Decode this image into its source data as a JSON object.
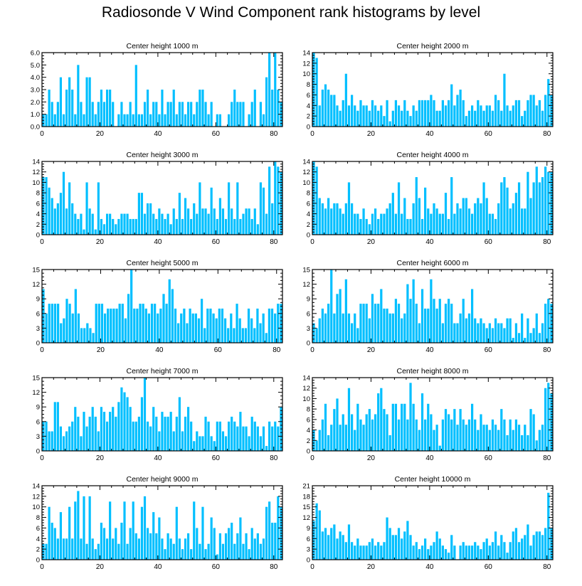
{
  "title": "Radiosonde V Wind Component rank histograms by level",
  "bar_color": "#00bfff",
  "chart_data": [
    {
      "type": "bar",
      "title": "Center height 1000 m",
      "x_ticks": [
        0,
        20,
        40,
        60,
        80
      ],
      "xlim": [
        0,
        83
      ],
      "ylim": [
        0,
        6
      ],
      "y_ticks": [
        "0.0",
        "1.0",
        "2.0",
        "3.0",
        "4.0",
        "5.0",
        "6.0"
      ],
      "y_tick_values": [
        0,
        1,
        2,
        3,
        4,
        5,
        6
      ],
      "values": [
        1,
        1,
        3,
        2,
        1,
        2,
        4,
        1,
        3,
        4,
        3,
        1,
        5,
        2,
        1,
        4,
        4,
        2,
        1,
        2,
        3,
        2,
        3,
        3,
        2,
        0,
        1,
        2,
        1,
        1,
        2,
        1,
        5,
        1,
        1,
        2,
        3,
        1,
        2,
        2,
        1,
        3,
        1,
        2,
        2,
        3,
        1,
        2,
        2,
        1,
        2,
        2,
        1,
        2,
        3,
        3,
        2,
        1,
        2,
        0,
        1,
        1,
        0,
        0,
        1,
        2,
        3,
        2,
        2,
        2,
        0,
        1,
        2,
        3,
        0,
        2,
        1,
        4,
        6,
        3,
        6,
        3,
        2
      ]
    },
    {
      "type": "bar",
      "title": "Center height 2000 m",
      "x_ticks": [
        0,
        20,
        40,
        60,
        80
      ],
      "xlim": [
        0,
        82
      ],
      "ylim": [
        0,
        14
      ],
      "y_ticks": [
        "0",
        "2",
        "4",
        "6",
        "8",
        "10",
        "12",
        "14"
      ],
      "y_tick_values": [
        0,
        2,
        4,
        6,
        8,
        10,
        12,
        14
      ],
      "values": [
        14,
        13,
        4,
        7,
        8,
        7,
        6,
        6,
        4,
        3,
        5,
        10,
        4,
        6,
        4,
        3,
        5,
        4,
        4,
        3,
        5,
        4,
        3,
        4,
        2,
        5,
        1,
        3,
        5,
        4,
        3,
        5,
        3,
        2,
        4,
        3,
        5,
        5,
        5,
        5,
        6,
        5,
        3,
        3,
        5,
        4,
        5,
        8,
        4,
        6,
        7,
        5,
        2,
        3,
        4,
        3,
        5,
        4,
        3,
        4,
        4,
        3,
        6,
        5,
        3,
        10,
        4,
        3,
        4,
        5,
        5,
        2,
        3,
        5,
        6,
        6,
        4,
        5,
        3,
        6,
        9,
        6
      ]
    },
    {
      "type": "bar",
      "title": "Center height 3000 m",
      "x_ticks": [
        0,
        20,
        40,
        60,
        80
      ],
      "xlim": [
        0,
        83
      ],
      "ylim": [
        0,
        14
      ],
      "y_ticks": [
        "0",
        "2",
        "4",
        "6",
        "8",
        "10",
        "12",
        "14"
      ],
      "y_tick_values": [
        0,
        2,
        4,
        6,
        8,
        10,
        12,
        14
      ],
      "values": [
        11,
        11,
        9,
        7,
        5,
        6,
        8,
        12,
        5,
        10,
        6,
        4,
        3,
        4,
        1,
        10,
        5,
        4,
        1,
        10,
        3,
        2,
        4,
        4,
        3,
        2,
        3,
        4,
        4,
        4,
        3,
        3,
        3,
        8,
        8,
        4,
        6,
        6,
        4,
        3,
        5,
        4,
        3,
        4,
        2,
        5,
        3,
        8,
        3,
        7,
        5,
        3,
        6,
        4,
        10,
        5,
        5,
        4,
        9,
        5,
        3,
        7,
        5,
        3,
        10,
        5,
        3,
        10,
        3,
        4,
        5,
        5,
        3,
        5,
        2,
        10,
        9,
        4,
        13,
        6,
        14,
        13,
        12
      ]
    },
    {
      "type": "bar",
      "title": "Center height 4000 m",
      "x_ticks": [
        0,
        20,
        40,
        60,
        80
      ],
      "xlim": [
        0,
        82
      ],
      "ylim": [
        0,
        14
      ],
      "y_ticks": [
        "0",
        "2",
        "4",
        "6",
        "8",
        "10",
        "12",
        "14"
      ],
      "y_tick_values": [
        0,
        2,
        4,
        6,
        8,
        10,
        12,
        14
      ],
      "values": [
        14,
        13,
        7,
        6,
        5,
        7,
        5,
        6,
        6,
        5,
        4,
        6,
        10,
        6,
        4,
        4,
        3,
        5,
        3,
        2,
        4,
        5,
        3,
        4,
        4,
        5,
        6,
        8,
        4,
        10,
        4,
        7,
        3,
        3,
        6,
        11,
        7,
        3,
        9,
        5,
        4,
        6,
        5,
        4,
        4,
        8,
        3,
        11,
        4,
        6,
        5,
        7,
        7,
        5,
        4,
        6,
        7,
        6,
        10,
        7,
        4,
        4,
        3,
        6,
        10,
        11,
        9,
        5,
        6,
        8,
        10,
        5,
        5,
        12,
        7,
        10,
        13,
        10,
        11,
        13,
        12,
        12
      ]
    },
    {
      "type": "bar",
      "title": "Center height 5000 m",
      "x_ticks": [
        0,
        20,
        40,
        60,
        80
      ],
      "xlim": [
        0,
        82
      ],
      "ylim": [
        0,
        15
      ],
      "y_ticks": [
        "0",
        "3",
        "6",
        "9",
        "12",
        "15"
      ],
      "y_tick_values": [
        0,
        3,
        6,
        9,
        12,
        15
      ],
      "values": [
        11,
        6,
        8,
        8,
        8,
        8,
        4,
        5,
        9,
        8,
        6,
        11,
        6,
        3,
        3,
        4,
        3,
        2,
        8,
        8,
        8,
        6,
        7,
        7,
        7,
        7,
        8,
        8,
        5,
        10,
        15,
        7,
        7,
        8,
        8,
        7,
        6,
        8,
        8,
        6,
        7,
        10,
        8,
        13,
        11,
        7,
        4,
        6,
        7,
        4,
        7,
        6,
        6,
        5,
        9,
        3,
        7,
        7,
        6,
        5,
        7,
        7,
        5,
        3,
        6,
        3,
        8,
        5,
        3,
        3,
        7,
        5,
        3,
        7,
        4,
        6,
        2,
        7,
        7,
        6,
        8,
        8
      ]
    },
    {
      "type": "bar",
      "title": "Center height 6000 m",
      "x_ticks": [
        0,
        20,
        40,
        60,
        80
      ],
      "xlim": [
        0,
        82
      ],
      "ylim": [
        0,
        15
      ],
      "y_ticks": [
        "0",
        "3",
        "6",
        "9",
        "12",
        "15"
      ],
      "y_tick_values": [
        0,
        3,
        6,
        9,
        12,
        15
      ],
      "values": [
        4,
        3,
        5,
        7,
        6,
        8,
        15,
        6,
        10,
        11,
        6,
        13,
        6,
        4,
        6,
        3,
        8,
        8,
        8,
        5,
        10,
        8,
        8,
        11,
        7,
        7,
        6,
        6,
        9,
        8,
        5,
        6,
        12,
        9,
        13,
        8,
        4,
        11,
        7,
        7,
        13,
        9,
        7,
        9,
        4,
        8,
        9,
        8,
        4,
        4,
        6,
        9,
        5,
        6,
        11,
        5,
        4,
        5,
        4,
        3,
        4,
        3,
        5,
        4,
        4,
        3,
        5,
        5,
        1,
        4,
        2,
        6,
        1,
        5,
        2,
        3,
        6,
        2,
        4,
        8,
        9,
        8
      ]
    },
    {
      "type": "bar",
      "title": "Center height 7000 m",
      "x_ticks": [
        0,
        20,
        40,
        60,
        80
      ],
      "xlim": [
        0,
        83
      ],
      "ylim": [
        0,
        15
      ],
      "y_ticks": [
        "0",
        "3",
        "6",
        "9",
        "12",
        "15"
      ],
      "y_tick_values": [
        0,
        3,
        6,
        9,
        12,
        15
      ],
      "values": [
        6,
        6,
        4,
        4,
        10,
        10,
        5,
        3,
        4,
        5,
        6,
        9,
        7,
        3,
        8,
        5,
        7,
        9,
        7,
        4,
        9,
        8,
        6,
        8,
        9,
        7,
        10,
        13,
        12,
        11,
        9,
        6,
        6,
        7,
        11,
        15,
        6,
        5,
        9,
        7,
        4,
        8,
        7,
        7,
        8,
        4,
        7,
        11,
        4,
        7,
        9,
        6,
        2,
        4,
        3,
        3,
        7,
        6,
        3,
        2,
        6,
        6,
        4,
        3,
        6,
        7,
        6,
        5,
        8,
        5,
        5,
        3,
        7,
        6,
        5,
        3,
        5,
        1,
        6,
        5,
        6,
        5,
        9
      ]
    },
    {
      "type": "bar",
      "title": "Center height 8000 m",
      "x_ticks": [
        0,
        20,
        40,
        60,
        80
      ],
      "xlim": [
        0,
        82
      ],
      "ylim": [
        0,
        14
      ],
      "y_ticks": [
        "0",
        "2",
        "4",
        "6",
        "8",
        "10",
        "12",
        "14"
      ],
      "y_tick_values": [
        0,
        2,
        4,
        6,
        8,
        10,
        12,
        14
      ],
      "values": [
        4,
        2,
        4,
        6,
        9,
        3,
        5,
        8,
        10,
        5,
        7,
        5,
        12,
        7,
        4,
        9,
        6,
        5,
        7,
        8,
        6,
        7,
        11,
        12,
        8,
        7,
        3,
        9,
        9,
        6,
        9,
        9,
        6,
        13,
        9,
        6,
        4,
        11,
        6,
        9,
        7,
        4,
        5,
        1,
        6,
        8,
        7,
        6,
        8,
        5,
        8,
        6,
        5,
        6,
        9,
        6,
        4,
        7,
        5,
        5,
        4,
        6,
        5,
        4,
        8,
        6,
        3,
        6,
        4,
        6,
        5,
        3,
        5,
        3,
        8,
        7,
        2,
        4,
        5,
        12,
        13,
        11
      ]
    },
    {
      "type": "bar",
      "title": "Center height 9000 m",
      "x_ticks": [
        0,
        20,
        40,
        60,
        80
      ],
      "xlim": [
        0,
        83
      ],
      "ylim": [
        0,
        14
      ],
      "y_ticks": [
        "0",
        "2",
        "4",
        "6",
        "8",
        "10",
        "12",
        "14"
      ],
      "y_tick_values": [
        0,
        2,
        4,
        6,
        8,
        10,
        12,
        14
      ],
      "values": [
        3,
        3,
        10,
        7,
        6,
        4,
        9,
        4,
        4,
        10,
        4,
        11,
        13,
        4,
        12,
        3,
        12,
        4,
        2,
        3,
        7,
        6,
        4,
        11,
        4,
        6,
        3,
        7,
        11,
        3,
        6,
        11,
        5,
        4,
        10,
        12,
        6,
        5,
        9,
        5,
        8,
        4,
        2,
        5,
        4,
        3,
        10,
        4,
        2,
        4,
        5,
        2,
        11,
        6,
        3,
        10,
        2,
        3,
        8,
        6,
        1,
        5,
        3,
        5,
        6,
        7,
        3,
        5,
        8,
        3,
        5,
        2,
        6,
        4,
        5,
        3,
        4,
        10,
        11,
        7,
        7,
        12,
        10
      ]
    },
    {
      "type": "bar",
      "title": "Center height 10000 m",
      "x_ticks": [
        0,
        20,
        40,
        60,
        80
      ],
      "xlim": [
        0,
        82
      ],
      "ylim": [
        0,
        21
      ],
      "y_ticks": [
        "0",
        "3",
        "6",
        "9",
        "12",
        "15",
        "18",
        "21"
      ],
      "y_tick_values": [
        0,
        3,
        6,
        9,
        12,
        15,
        18,
        21
      ],
      "values": [
        11,
        16,
        14,
        8,
        9,
        7,
        9,
        10,
        6,
        8,
        7,
        5,
        10,
        5,
        4,
        6,
        4,
        4,
        4,
        5,
        6,
        4,
        5,
        4,
        5,
        12,
        9,
        7,
        7,
        9,
        6,
        8,
        11,
        7,
        4,
        5,
        3,
        4,
        6,
        3,
        4,
        5,
        8,
        6,
        4,
        3,
        2,
        7,
        4,
        0,
        4,
        5,
        4,
        4,
        4,
        5,
        4,
        3,
        5,
        6,
        4,
        5,
        8,
        4,
        7,
        5,
        2,
        5,
        8,
        9,
        5,
        6,
        7,
        10,
        4,
        7,
        8,
        8,
        7,
        9,
        19,
        9
      ]
    }
  ]
}
